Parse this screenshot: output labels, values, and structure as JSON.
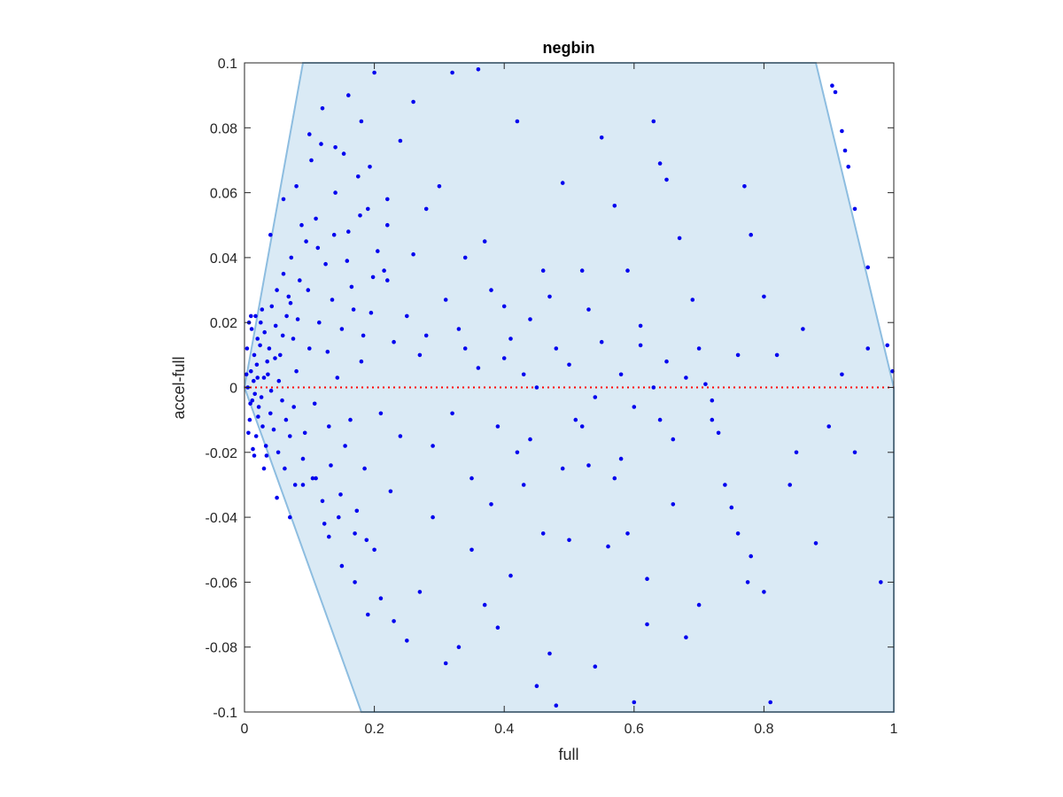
{
  "chart_data": {
    "type": "scatter",
    "title": "negbin",
    "xlabel": "full",
    "ylabel": "accel-full",
    "xlim": [
      0,
      1
    ],
    "ylim": [
      -0.1,
      0.1
    ],
    "x_ticks": [
      0,
      0.2,
      0.4,
      0.6,
      0.8,
      1
    ],
    "x_tick_labels": [
      "0",
      "0.2",
      "0.4",
      "0.6",
      "0.8",
      "1"
    ],
    "y_ticks": [
      -0.1,
      -0.08,
      -0.06,
      -0.04,
      -0.02,
      0,
      0.02,
      0.04,
      0.06,
      0.08,
      0.1
    ],
    "y_tick_labels": [
      "-0.1",
      "-0.08",
      "-0.06",
      "-0.04",
      "-0.02",
      "0",
      "0.02",
      "0.04",
      "0.06",
      "0.08",
      "0.1"
    ],
    "grid": false,
    "legend": "none",
    "reference_line": {
      "y": 0,
      "color": "#ff0000",
      "style": "dotted"
    },
    "region": {
      "fill": "#daeaf5",
      "edge": "#8dbde0",
      "polygon": [
        [
          0,
          0
        ],
        [
          0.09,
          0.1
        ],
        [
          0.88,
          0.1
        ],
        [
          1,
          0
        ],
        [
          1,
          -0.1
        ],
        [
          0.18,
          -0.1
        ]
      ]
    },
    "point_color": "#0000ee",
    "points": [
      [
        0.005,
        0.0
      ],
      [
        0.01,
        0.005
      ],
      [
        0.012,
        -0.004
      ],
      [
        0.015,
        0.01
      ],
      [
        0.008,
        -0.01
      ],
      [
        0.02,
        0.015
      ],
      [
        0.018,
        -0.015
      ],
      [
        0.025,
        0.02
      ],
      [
        0.022,
        -0.006
      ],
      [
        0.03,
        0.003
      ],
      [
        0.028,
        -0.012
      ],
      [
        0.035,
        0.008
      ],
      [
        0.033,
        -0.018
      ],
      [
        0.004,
        0.012
      ],
      [
        0.006,
        -0.014
      ],
      [
        0.014,
        0.002
      ],
      [
        0.016,
        -0.002
      ],
      [
        0.011,
        0.018
      ],
      [
        0.009,
        -0.005
      ],
      [
        0.019,
        0.007
      ],
      [
        0.021,
        -0.009
      ],
      [
        0.024,
        0.013
      ],
      [
        0.026,
        -0.003
      ],
      [
        0.003,
        0.004
      ],
      [
        0.007,
        0.02
      ],
      [
        0.013,
        -0.019
      ],
      [
        0.017,
        0.022
      ],
      [
        0.031,
        0.017
      ],
      [
        0.034,
        -0.021
      ],
      [
        0.038,
        0.012
      ],
      [
        0.04,
        -0.008
      ],
      [
        0.042,
        0.025
      ],
      [
        0.045,
        -0.013
      ],
      [
        0.048,
        0.019
      ],
      [
        0.05,
        0.03
      ],
      [
        0.052,
        -0.02
      ],
      [
        0.055,
        0.01
      ],
      [
        0.058,
        -0.004
      ],
      [
        0.06,
        0.035
      ],
      [
        0.062,
        -0.025
      ],
      [
        0.065,
        0.022
      ],
      [
        0.068,
        0.028
      ],
      [
        0.07,
        -0.015
      ],
      [
        0.072,
        0.04
      ],
      [
        0.075,
        0.015
      ],
      [
        0.078,
        -0.03
      ],
      [
        0.08,
        0.005
      ],
      [
        0.085,
        0.033
      ],
      [
        0.09,
        -0.022
      ],
      [
        0.095,
        0.045
      ],
      [
        0.1,
        0.012
      ],
      [
        0.105,
        -0.028
      ],
      [
        0.11,
        0.052
      ],
      [
        0.115,
        0.02
      ],
      [
        0.12,
        -0.035
      ],
      [
        0.125,
        0.038
      ],
      [
        0.13,
        -0.012
      ],
      [
        0.135,
        0.027
      ],
      [
        0.14,
        0.06
      ],
      [
        0.145,
        -0.04
      ],
      [
        0.15,
        0.018
      ],
      [
        0.155,
        -0.018
      ],
      [
        0.16,
        0.048
      ],
      [
        0.165,
        0.031
      ],
      [
        0.17,
        -0.045
      ],
      [
        0.175,
        0.065
      ],
      [
        0.18,
        0.008
      ],
      [
        0.185,
        -0.025
      ],
      [
        0.19,
        0.055
      ],
      [
        0.195,
        0.023
      ],
      [
        0.2,
        -0.05
      ],
      [
        0.205,
        0.042
      ],
      [
        0.21,
        -0.008
      ],
      [
        0.215,
        0.036
      ],
      [
        0.22,
        0.058
      ],
      [
        0.225,
        -0.032
      ],
      [
        0.23,
        0.014
      ],
      [
        0.01,
        0.022
      ],
      [
        0.015,
        -0.021
      ],
      [
        0.02,
        0.003
      ],
      [
        0.027,
        0.024
      ],
      [
        0.036,
        0.004
      ],
      [
        0.041,
        -0.001
      ],
      [
        0.047,
        0.009
      ],
      [
        0.053,
        0.002
      ],
      [
        0.059,
        0.016
      ],
      [
        0.064,
        -0.01
      ],
      [
        0.071,
        0.026
      ],
      [
        0.076,
        -0.006
      ],
      [
        0.082,
        0.021
      ],
      [
        0.088,
        0.05
      ],
      [
        0.093,
        -0.014
      ],
      [
        0.098,
        0.03
      ],
      [
        0.103,
        0.07
      ],
      [
        0.108,
        -0.005
      ],
      [
        0.113,
        0.043
      ],
      [
        0.118,
        0.075
      ],
      [
        0.123,
        -0.042
      ],
      [
        0.128,
        0.011
      ],
      [
        0.133,
        -0.024
      ],
      [
        0.138,
        0.047
      ],
      [
        0.143,
        0.003
      ],
      [
        0.148,
        -0.033
      ],
      [
        0.153,
        0.072
      ],
      [
        0.158,
        0.039
      ],
      [
        0.163,
        -0.01
      ],
      [
        0.168,
        0.024
      ],
      [
        0.173,
        -0.038
      ],
      [
        0.178,
        0.053
      ],
      [
        0.183,
        0.016
      ],
      [
        0.188,
        -0.047
      ],
      [
        0.193,
        0.068
      ],
      [
        0.198,
        0.034
      ],
      [
        0.03,
        -0.025
      ],
      [
        0.04,
        0.047
      ],
      [
        0.05,
        -0.034
      ],
      [
        0.06,
        0.058
      ],
      [
        0.07,
        -0.04
      ],
      [
        0.08,
        0.062
      ],
      [
        0.09,
        -0.03
      ],
      [
        0.1,
        0.078
      ],
      [
        0.11,
        -0.028
      ],
      [
        0.12,
        0.086
      ],
      [
        0.13,
        -0.046
      ],
      [
        0.14,
        0.074
      ],
      [
        0.15,
        -0.055
      ],
      [
        0.16,
        0.09
      ],
      [
        0.17,
        -0.06
      ],
      [
        0.18,
        0.082
      ],
      [
        0.19,
        -0.07
      ],
      [
        0.2,
        0.097
      ],
      [
        0.21,
        -0.065
      ],
      [
        0.22,
        0.05
      ],
      [
        0.23,
        -0.072
      ],
      [
        0.24,
        0.076
      ],
      [
        0.25,
        -0.078
      ],
      [
        0.26,
        0.088
      ],
      [
        0.27,
        -0.063
      ],
      [
        0.28,
        0.055
      ],
      [
        0.29,
        -0.04
      ],
      [
        0.3,
        0.062
      ],
      [
        0.31,
        -0.085
      ],
      [
        0.32,
        0.097
      ],
      [
        0.33,
        -0.08
      ],
      [
        0.34,
        0.04
      ],
      [
        0.35,
        -0.05
      ],
      [
        0.36,
        0.098
      ],
      [
        0.37,
        -0.067
      ],
      [
        0.38,
        0.03
      ],
      [
        0.39,
        -0.074
      ],
      [
        0.4,
        0.025
      ],
      [
        0.41,
        -0.058
      ],
      [
        0.42,
        0.082
      ],
      [
        0.43,
        -0.03
      ],
      [
        0.44,
        0.021
      ],
      [
        0.45,
        -0.092
      ],
      [
        0.46,
        0.036
      ],
      [
        0.47,
        -0.082
      ],
      [
        0.48,
        -0.098
      ],
      [
        0.49,
        0.063
      ],
      [
        0.5,
        -0.047
      ],
      [
        0.52,
        0.036
      ],
      [
        0.53,
        -0.024
      ],
      [
        0.54,
        -0.086
      ],
      [
        0.55,
        0.077
      ],
      [
        0.56,
        -0.049
      ],
      [
        0.57,
        0.056
      ],
      [
        0.58,
        -0.022
      ],
      [
        0.59,
        0.036
      ],
      [
        0.6,
        -0.097
      ],
      [
        0.61,
        0.013
      ],
      [
        0.62,
        -0.073
      ],
      [
        0.63,
        0.082
      ],
      [
        0.64,
        0.069
      ],
      [
        0.65,
        0.064
      ],
      [
        0.66,
        -0.036
      ],
      [
        0.67,
        0.046
      ],
      [
        0.68,
        -0.077
      ],
      [
        0.69,
        0.027
      ],
      [
        0.7,
        -0.067
      ],
      [
        0.71,
        0.001
      ],
      [
        0.72,
        -0.01
      ],
      [
        0.73,
        -0.014
      ],
      [
        0.75,
        -0.037
      ],
      [
        0.76,
        -0.045
      ],
      [
        0.77,
        0.062
      ],
      [
        0.775,
        -0.06
      ],
      [
        0.78,
        0.047
      ],
      [
        0.8,
        0.028
      ],
      [
        0.81,
        -0.097
      ],
      [
        0.85,
        -0.02
      ],
      [
        0.905,
        0.093
      ],
      [
        0.91,
        0.091
      ],
      [
        0.92,
        0.079
      ],
      [
        0.925,
        0.073
      ],
      [
        0.93,
        0.068
      ],
      [
        0.94,
        0.055
      ],
      [
        0.96,
        0.037
      ],
      [
        0.99,
        0.013
      ],
      [
        0.998,
        0.005
      ],
      [
        0.63,
        0.0
      ],
      [
        0.45,
        0.0
      ],
      [
        0.27,
        0.01
      ],
      [
        0.33,
        0.018
      ],
      [
        0.39,
        -0.012
      ],
      [
        0.36,
        0.006
      ],
      [
        0.42,
        -0.02
      ],
      [
        0.48,
        0.012
      ],
      [
        0.51,
        -0.01
      ],
      [
        0.55,
        0.014
      ],
      [
        0.6,
        -0.006
      ],
      [
        0.24,
        -0.015
      ],
      [
        0.25,
        0.022
      ],
      [
        0.29,
        -0.018
      ],
      [
        0.31,
        0.027
      ],
      [
        0.35,
        -0.028
      ],
      [
        0.4,
        0.009
      ],
      [
        0.37,
        0.045
      ],
      [
        0.26,
        0.041
      ],
      [
        0.22,
        0.033
      ],
      [
        0.28,
        0.016
      ],
      [
        0.32,
        -0.008
      ],
      [
        0.34,
        0.012
      ],
      [
        0.38,
        -0.036
      ],
      [
        0.41,
        0.015
      ],
      [
        0.43,
        0.004
      ],
      [
        0.44,
        -0.016
      ],
      [
        0.46,
        -0.045
      ],
      [
        0.47,
        0.028
      ],
      [
        0.49,
        -0.025
      ],
      [
        0.5,
        0.007
      ],
      [
        0.52,
        -0.012
      ],
      [
        0.53,
        0.024
      ],
      [
        0.54,
        -0.003
      ],
      [
        0.57,
        -0.028
      ],
      [
        0.58,
        0.004
      ],
      [
        0.59,
        -0.045
      ],
      [
        0.61,
        0.019
      ],
      [
        0.62,
        -0.059
      ],
      [
        0.64,
        -0.01
      ],
      [
        0.65,
        0.008
      ],
      [
        0.66,
        -0.016
      ],
      [
        0.68,
        0.003
      ],
      [
        0.7,
        0.012
      ],
      [
        0.72,
        -0.004
      ],
      [
        0.74,
        -0.03
      ],
      [
        0.76,
        0.01
      ],
      [
        0.78,
        -0.052
      ],
      [
        0.8,
        -0.063
      ],
      [
        0.82,
        0.01
      ],
      [
        0.84,
        -0.03
      ],
      [
        0.86,
        0.018
      ],
      [
        0.88,
        -0.048
      ],
      [
        0.9,
        -0.012
      ],
      [
        0.92,
        0.004
      ],
      [
        0.94,
        -0.02
      ],
      [
        0.96,
        0.012
      ],
      [
        0.98,
        -0.06
      ]
    ]
  }
}
